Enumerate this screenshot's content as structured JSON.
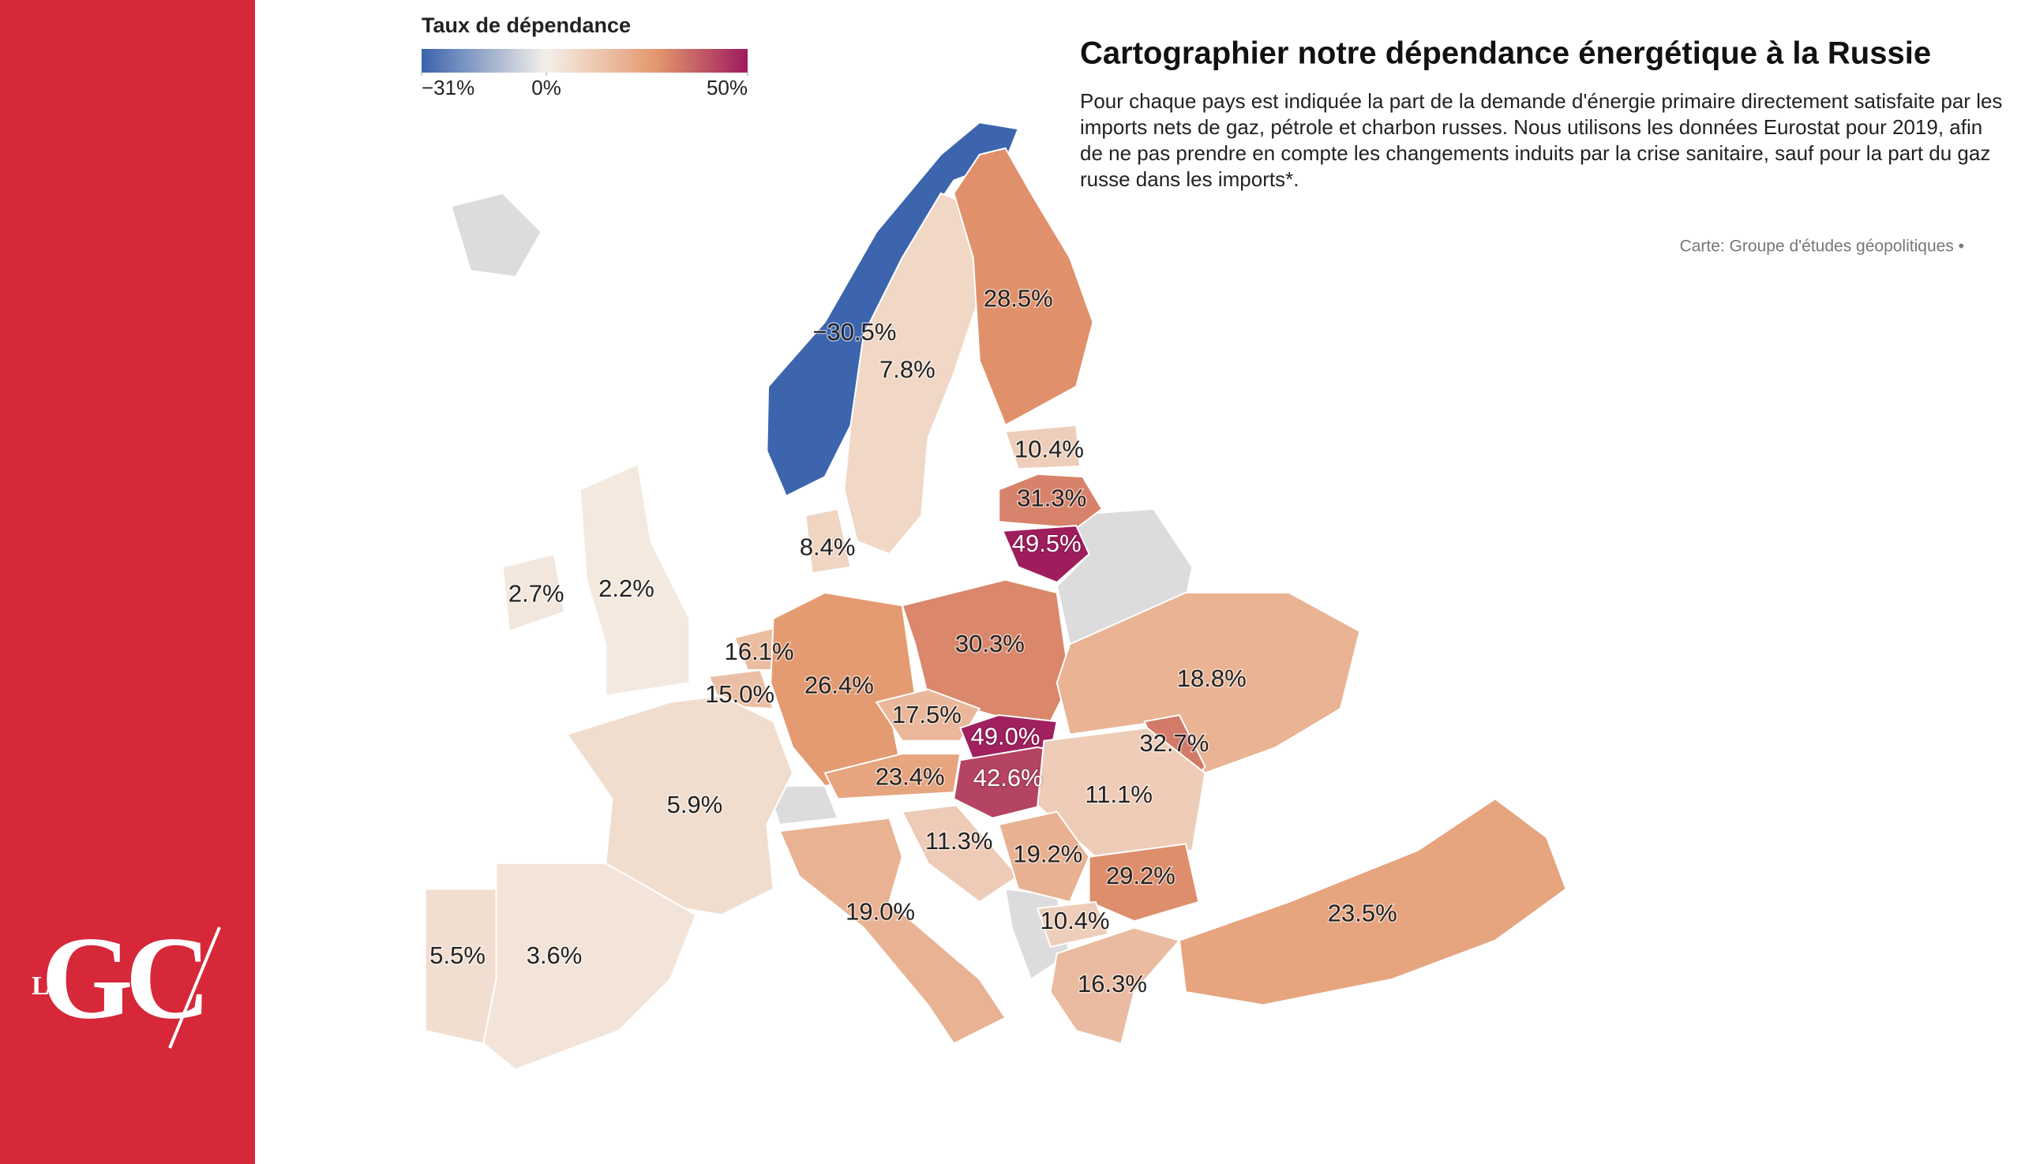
{
  "chart_data": {
    "type": "choropleth",
    "title": "Cartographier notre dépendance énergétique à la Russie",
    "subtitle": "Pour chaque pays est indiquée la part de la demande d'énergie primaire directement satisfaite par les imports nets de gaz, pétrole et charbon russes. Nous utilisons les données Eurostat pour 2019, afin de ne pas prendre en compte les changements induits par la crise sanitaire, sauf pour la part du gaz russe dans les imports*.",
    "source": "Carte: Groupe d'études géopolitiques •",
    "legend": {
      "title": "Taux de dépendance",
      "ticks": [
        {
          "value": -31,
          "label": "−31%"
        },
        {
          "value": 0,
          "label": "0%"
        },
        {
          "value": 50,
          "label": "50%"
        }
      ],
      "colors": [
        "#3a63ad",
        "#f5f0e9",
        "#9e1a5d"
      ]
    },
    "values": [
      -30.5,
      7.8,
      28.5,
      10.4,
      31.3,
      49.5,
      8.4,
      2.7,
      2.2,
      16.1,
      15.0,
      26.4,
      30.3,
      18.8,
      17.5,
      49.0,
      32.7,
      42.6,
      23.4,
      11.1,
      5.9,
      11.3,
      19.2,
      29.2,
      19.0,
      10.4,
      23.5,
      5.5,
      3.6,
      16.3
    ],
    "value_labels": [
      "−30.5%",
      "7.8%",
      "28.5%",
      "10.4%",
      "31.3%",
      "49.5%",
      "8.4%",
      "2.7%",
      "2.2%",
      "16.1%",
      "15.0%",
      "26.4%",
      "30.3%",
      "18.8%",
      "17.5%",
      "49.0%",
      "32.7%",
      "42.6%",
      "23.4%",
      "11.1%",
      "5.9%",
      "11.3%",
      "19.2%",
      "29.2%",
      "19.0%",
      "10.4%",
      "23.5%",
      "5.5%",
      "3.6%",
      "16.3%"
    ],
    "no_data_color": "#dcdcdc"
  },
  "logo": {
    "small": "LE",
    "main": "GC"
  }
}
